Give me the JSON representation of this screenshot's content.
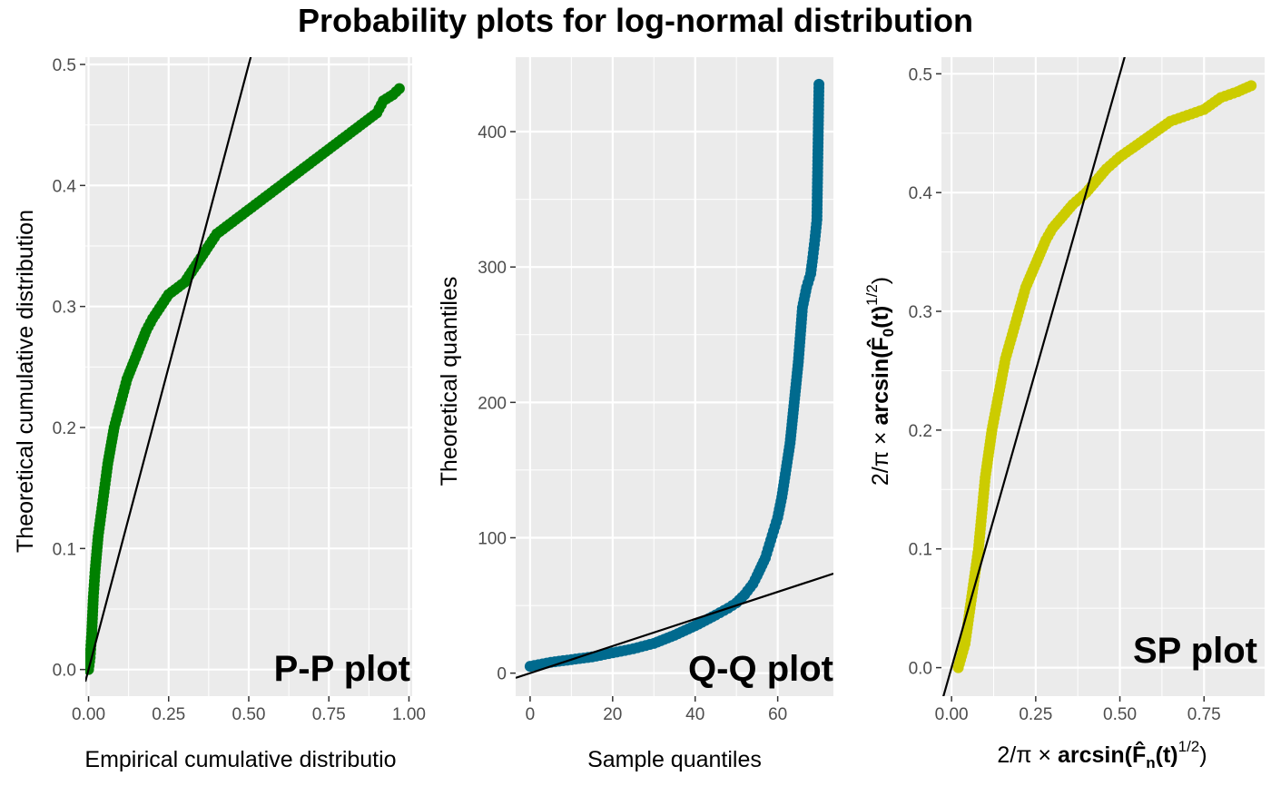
{
  "title": "Probability plots for log-normal distribution",
  "chart_data": [
    {
      "type": "scatter",
      "panel_label": "P-P plot",
      "xlabel": "Empirical cumulative distributio",
      "ylabel": "Theoretical cumulative distribution",
      "xlim": [
        -0.01,
        1.01
      ],
      "ylim": [
        -0.022,
        0.506
      ],
      "xticks": [
        "0.00",
        "0.25",
        "0.50",
        "0.75",
        "1.00"
      ],
      "yticks": [
        "0.0",
        "0.1",
        "0.2",
        "0.3",
        "0.4",
        "0.5"
      ],
      "grid": true,
      "point_color": "#008000",
      "reference_line": {
        "slope": 1,
        "intercept": 0
      },
      "points": {
        "x": [
          0.0,
          0.005,
          0.01,
          0.015,
          0.02,
          0.03,
          0.04,
          0.05,
          0.06,
          0.08,
          0.1,
          0.12,
          0.15,
          0.18,
          0.2,
          0.25,
          0.3,
          0.35,
          0.4,
          0.45,
          0.5,
          0.55,
          0.6,
          0.65,
          0.7,
          0.75,
          0.8,
          0.85,
          0.9,
          0.92,
          0.95,
          0.97
        ],
        "y": [
          0.0,
          0.01,
          0.03,
          0.06,
          0.08,
          0.11,
          0.13,
          0.15,
          0.17,
          0.2,
          0.22,
          0.24,
          0.26,
          0.28,
          0.29,
          0.31,
          0.32,
          0.34,
          0.36,
          0.37,
          0.38,
          0.39,
          0.4,
          0.41,
          0.42,
          0.43,
          0.44,
          0.45,
          0.46,
          0.47,
          0.475,
          0.48
        ]
      }
    },
    {
      "type": "scatter",
      "panel_label": "Q-Q plot",
      "xlabel": "Sample quantiles",
      "ylabel": "Theoretical quantiles",
      "xlim": [
        -3.5,
        73.5
      ],
      "ylim": [
        -17,
        455
      ],
      "xticks": [
        "0",
        "20",
        "40",
        "60"
      ],
      "yticks": [
        "0",
        "100",
        "200",
        "300",
        "400"
      ],
      "grid": true,
      "point_color": "#006a8e",
      "reference_line": {
        "slope": 1,
        "intercept": 0
      },
      "points": {
        "x": [
          0,
          5,
          10,
          15,
          20,
          25,
          30,
          35,
          40,
          45,
          48,
          50,
          52,
          54,
          55,
          57,
          58,
          59,
          60,
          61,
          62,
          63,
          64,
          65,
          65.5,
          66,
          67,
          68,
          68.5,
          69,
          69.5,
          70
        ],
        "y": [
          5,
          8,
          10,
          12,
          15,
          18,
          22,
          28,
          35,
          43,
          48,
          52,
          58,
          66,
          72,
          85,
          95,
          105,
          115,
          130,
          150,
          170,
          200,
          230,
          250,
          270,
          285,
          295,
          307,
          320,
          335,
          435
        ]
      }
    },
    {
      "type": "scatter",
      "panel_label": "SP plot",
      "xlabel": "2/π × arcsin(F̂n(t)^1/2)",
      "ylabel": "2/π × arcsin(F̂0(t)^1/2)",
      "xlim": [
        -0.03,
        0.93
      ],
      "ylim": [
        -0.024,
        0.514
      ],
      "xticks": [
        "0.00",
        "0.25",
        "0.50",
        "0.75"
      ],
      "yticks": [
        "0.0",
        "0.1",
        "0.2",
        "0.3",
        "0.4",
        "0.5"
      ],
      "grid": true,
      "point_color": "#cccc00",
      "reference_line": {
        "slope": 1,
        "intercept": 0
      },
      "points": {
        "x": [
          0.02,
          0.03,
          0.04,
          0.05,
          0.06,
          0.07,
          0.08,
          0.09,
          0.1,
          0.12,
          0.14,
          0.16,
          0.18,
          0.2,
          0.22,
          0.25,
          0.28,
          0.3,
          0.33,
          0.36,
          0.4,
          0.43,
          0.46,
          0.5,
          0.55,
          0.6,
          0.65,
          0.7,
          0.75,
          0.8,
          0.85,
          0.89
        ],
        "y": [
          0.0,
          0.01,
          0.02,
          0.04,
          0.06,
          0.08,
          0.1,
          0.13,
          0.16,
          0.2,
          0.23,
          0.26,
          0.28,
          0.3,
          0.32,
          0.34,
          0.36,
          0.37,
          0.38,
          0.39,
          0.4,
          0.41,
          0.42,
          0.43,
          0.44,
          0.45,
          0.46,
          0.465,
          0.47,
          0.48,
          0.485,
          0.49
        ]
      }
    }
  ]
}
